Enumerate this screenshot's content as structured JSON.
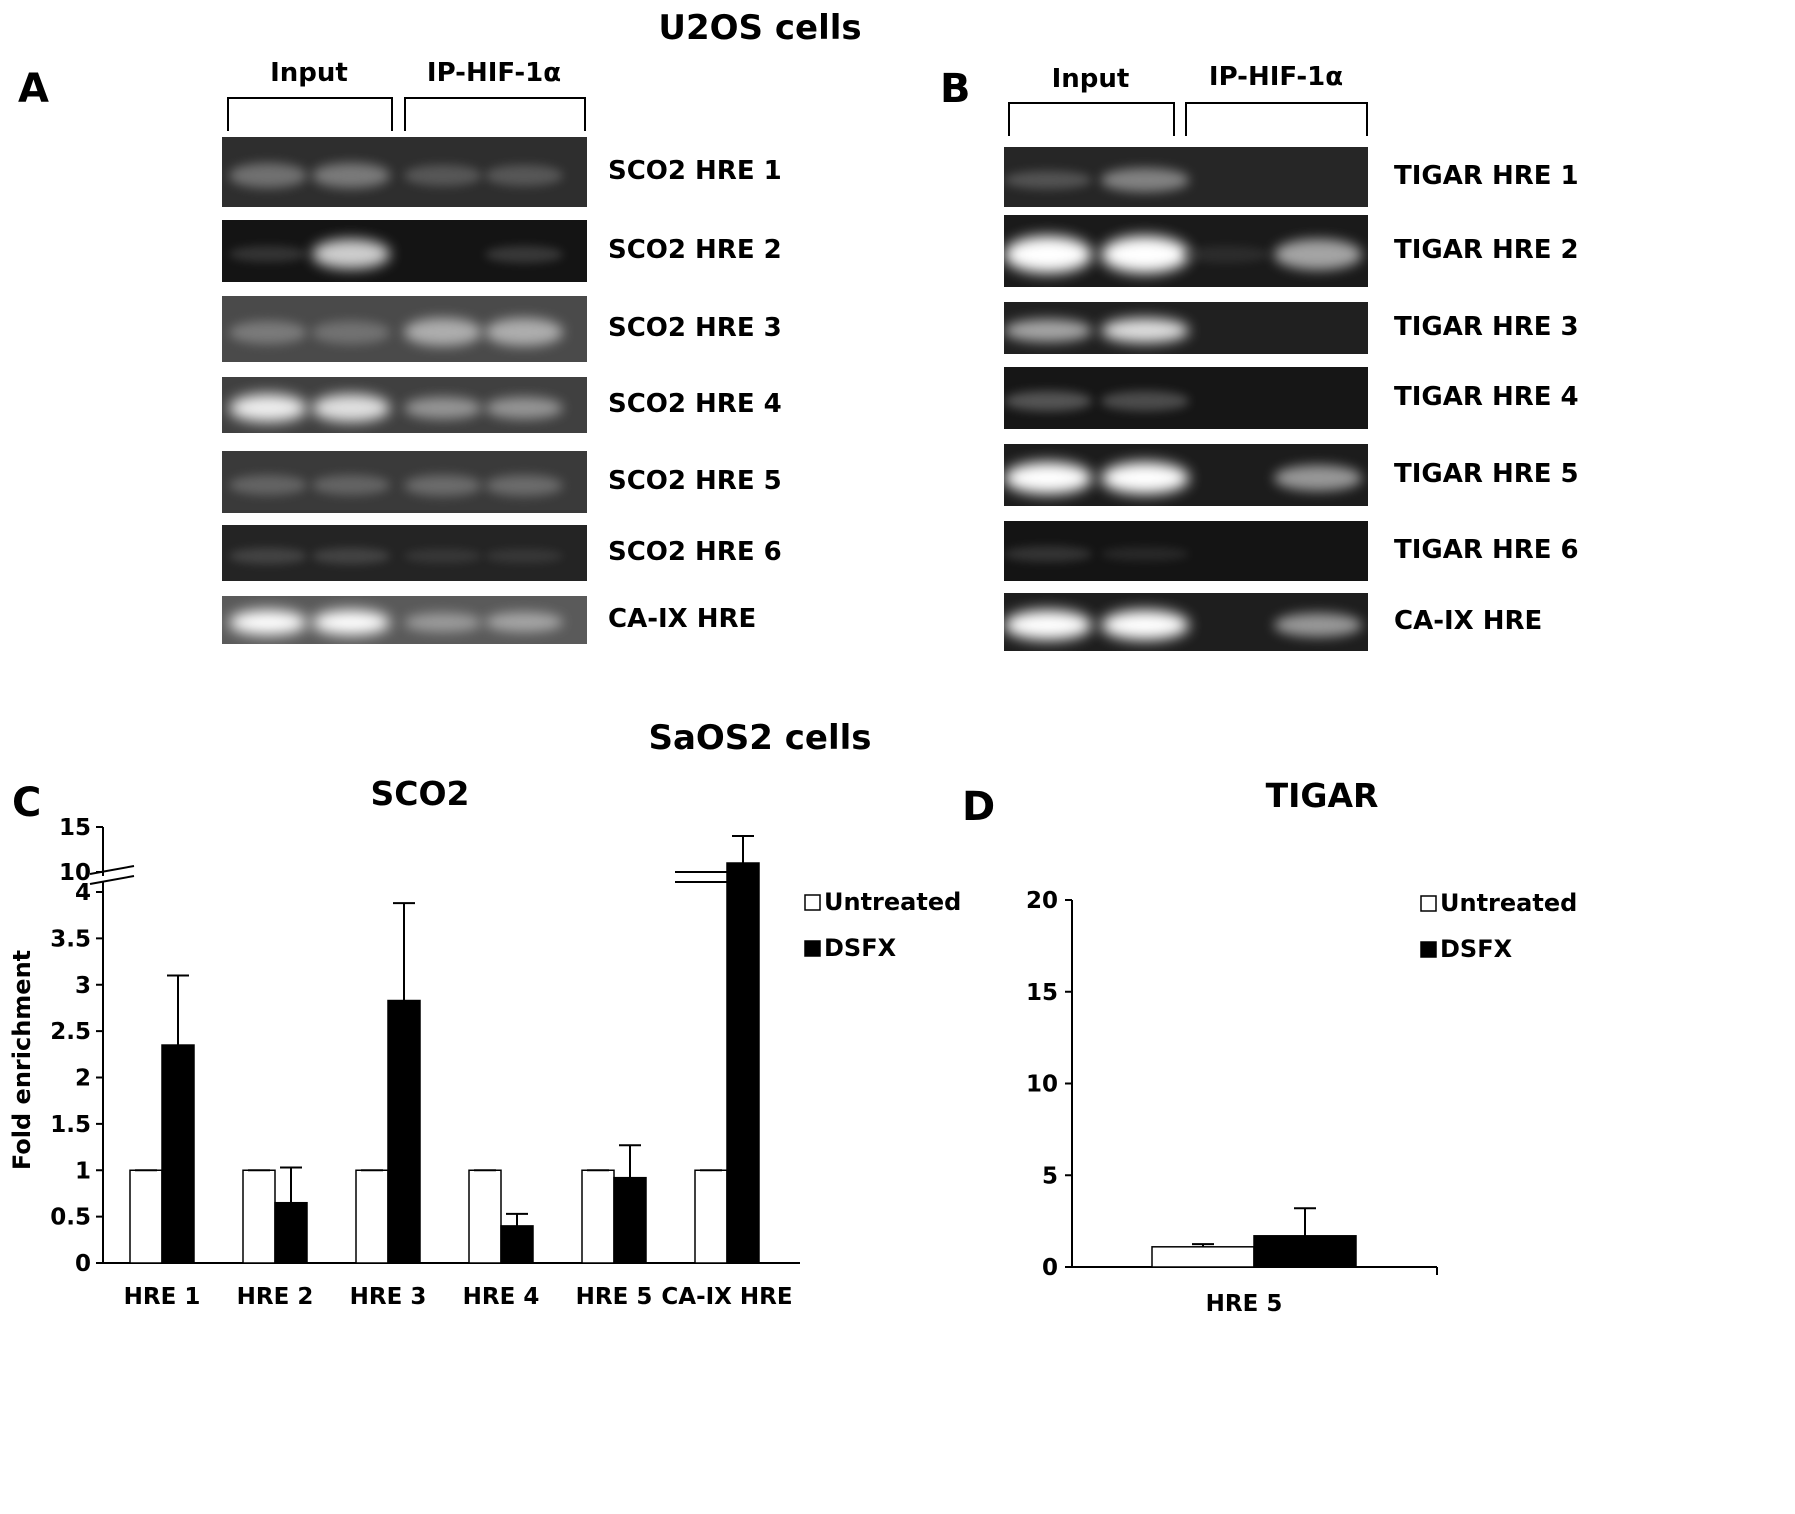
{
  "top_title": "U2OS cells",
  "bottom_title": "SaOS2 cells",
  "panel_a": {
    "letter": "A",
    "header_input": "Input",
    "header_ip": "IP-HIF-1α",
    "rows": [
      {
        "label": "SCO2 HRE 1",
        "bg": "#2e2e2e",
        "bands": [
          0.45,
          0.5,
          0.3,
          0.3
        ]
      },
      {
        "label": "SCO2 HRE 2",
        "bg": "#141414",
        "bands": [
          0.15,
          0.85,
          0.0,
          0.18
        ]
      },
      {
        "label": "SCO2 HRE 3",
        "bg": "#4a4a4a",
        "bands": [
          0.45,
          0.4,
          0.7,
          0.7
        ]
      },
      {
        "label": "SCO2 HRE 4",
        "bg": "#404040",
        "bands": [
          0.95,
          0.9,
          0.6,
          0.6
        ]
      },
      {
        "label": "SCO2 HRE 5",
        "bg": "#3a3a3a",
        "bands": [
          0.35,
          0.35,
          0.4,
          0.4
        ]
      },
      {
        "label": "SCO2 HRE 6",
        "bg": "#242424",
        "bands": [
          0.2,
          0.2,
          0.1,
          0.1
        ]
      },
      {
        "label": "CA-IX HRE",
        "bg": "#5a5a5a",
        "bands": [
          1.0,
          1.0,
          0.6,
          0.65
        ]
      }
    ]
  },
  "panel_b": {
    "letter": "B",
    "header_input": "Input",
    "header_ip": "IP-HIF-1α",
    "rows": [
      {
        "label": "TIGAR HRE 1",
        "bg": "#262626",
        "bands": [
          0.3,
          0.55,
          0.0,
          0.0
        ]
      },
      {
        "label": "TIGAR HRE 2",
        "bg": "#1a1a1a",
        "bands": [
          1.0,
          1.0,
          0.05,
          0.7
        ]
      },
      {
        "label": "TIGAR HRE 3",
        "bg": "#202020",
        "bands": [
          0.7,
          0.9,
          0.0,
          0.0
        ]
      },
      {
        "label": "TIGAR HRE 4",
        "bg": "#161616",
        "bands": [
          0.35,
          0.3,
          0.0,
          0.0
        ]
      },
      {
        "label": "TIGAR HRE 5",
        "bg": "#1c1c1c",
        "bands": [
          1.0,
          1.0,
          0.0,
          0.65
        ]
      },
      {
        "label": "TIGAR HRE 6",
        "bg": "#141414",
        "bands": [
          0.15,
          0.05,
          0.0,
          0.0
        ]
      },
      {
        "label": "CA-IX HRE",
        "bg": "#1e1e1e",
        "bands": [
          1.0,
          1.0,
          0.0,
          0.65
        ]
      }
    ]
  },
  "panel_c": {
    "letter": "C",
    "chart_data": {
      "type": "bar",
      "title": "SCO2",
      "ylabel": "Fold enrichment",
      "categories": [
        "HRE 1",
        "HRE 2",
        "HRE 3",
        "HRE 4",
        "HRE 5",
        "CA-IX HRE"
      ],
      "series": [
        {
          "name": "Untreated",
          "color": "#ffffff",
          "values": [
            1,
            1,
            1,
            1,
            1,
            1
          ],
          "errors": [
            0,
            0,
            0,
            0,
            0,
            0
          ]
        },
        {
          "name": "DSFX",
          "color": "#000000",
          "values": [
            2.35,
            0.65,
            2.83,
            0.4,
            0.92,
            11
          ],
          "errors": [
            0.75,
            0.38,
            1.05,
            0.13,
            0.35,
            3
          ]
        }
      ],
      "yticks_lower": [
        "0",
        "0.5",
        "1",
        "1.5",
        "2",
        "2.5",
        "3",
        "3.5",
        "4"
      ],
      "yticks_upper": [
        "10",
        "15"
      ],
      "ylim": [
        0,
        15
      ],
      "axis_break": [
        4,
        10
      ],
      "legend_position": "right"
    }
  },
  "panel_d": {
    "letter": "D",
    "chart_data": {
      "type": "bar",
      "title": "TIGAR",
      "ylabel": "",
      "categories": [
        "HRE 5"
      ],
      "series": [
        {
          "name": "Untreated",
          "color": "#ffffff",
          "values": [
            1.1
          ],
          "errors": [
            0.15
          ]
        },
        {
          "name": "DSFX",
          "color": "#000000",
          "values": [
            1.7
          ],
          "errors": [
            1.5
          ]
        }
      ],
      "yticks": [
        "0",
        "5",
        "10",
        "15",
        "20"
      ],
      "ylim": [
        0,
        20
      ],
      "legend_position": "top-right"
    }
  }
}
